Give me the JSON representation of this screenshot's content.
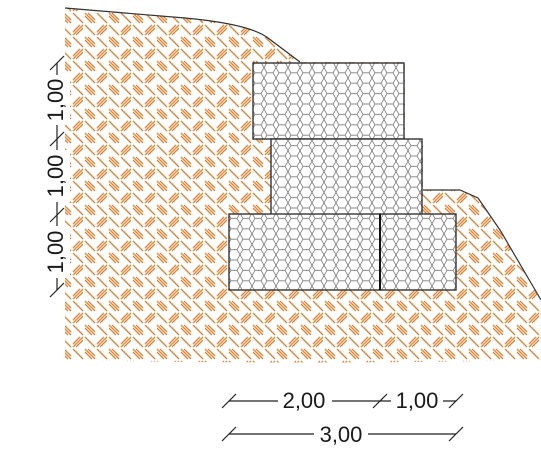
{
  "diagram": {
    "type": "gabion retaining wall cross-section",
    "soil_hatch_color": "#d8863a",
    "gabion_fill": "hexagonal wire mesh"
  },
  "dimensions": {
    "vertical": [
      "1,00",
      "1,00",
      "1,00"
    ],
    "bottom_row_top": [
      "2,00",
      "1,00"
    ],
    "bottom_row_total": "3,00"
  }
}
